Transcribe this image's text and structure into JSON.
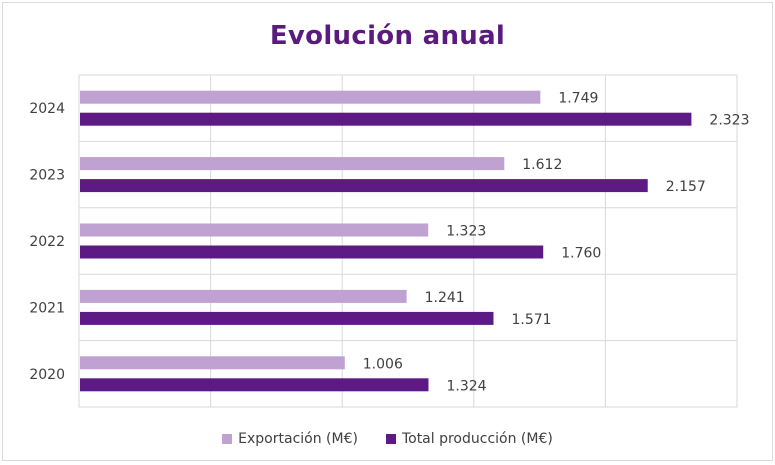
{
  "chart_data": {
    "type": "bar",
    "orientation": "horizontal",
    "title": "Evolución anual",
    "categories": [
      "2024",
      "2023",
      "2022",
      "2021",
      "2020"
    ],
    "series": [
      {
        "name": "Exportación (M€)",
        "color": "#bfa1d2",
        "values": [
          1749,
          1612,
          1323,
          1241,
          1006
        ],
        "labels": [
          "1.749",
          "1.612",
          "1.323",
          "1.241",
          "1.006"
        ]
      },
      {
        "name": "Total producción (M€)",
        "color": "#5e1a84",
        "values": [
          2323,
          2157,
          1760,
          1571,
          1324
        ],
        "labels": [
          "2.323",
          "2.157",
          "1.760",
          "1.571",
          "1.324"
        ]
      }
    ],
    "xlim": [
      0,
      2500
    ],
    "grid": true,
    "legend_position": "bottom"
  }
}
